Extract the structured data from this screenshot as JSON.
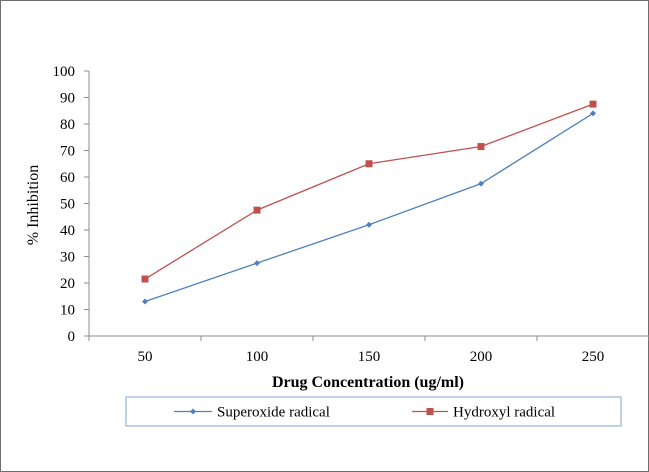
{
  "chart_data": {
    "type": "line",
    "categories": [
      "50",
      "100",
      "150",
      "200",
      "250"
    ],
    "series": [
      {
        "name": "Superoxide radical",
        "values": [
          13,
          27.5,
          42,
          57.5,
          84
        ],
        "color": "#4f81bd",
        "marker": "diamond"
      },
      {
        "name": "Hydroxyl radical",
        "values": [
          21.5,
          47.5,
          65,
          71.5,
          87.5
        ],
        "color": "#c0504d",
        "marker": "square"
      }
    ],
    "title": "",
    "xlabel": "Drug Concentration (ug/ml)",
    "ylabel": "% Inhibition",
    "ylim": [
      0,
      100
    ],
    "yticks": [
      "0",
      "10",
      "20",
      "30",
      "40",
      "50",
      "60",
      "70",
      "80",
      "90",
      "100"
    ],
    "grid": false,
    "legend": "bottom"
  }
}
